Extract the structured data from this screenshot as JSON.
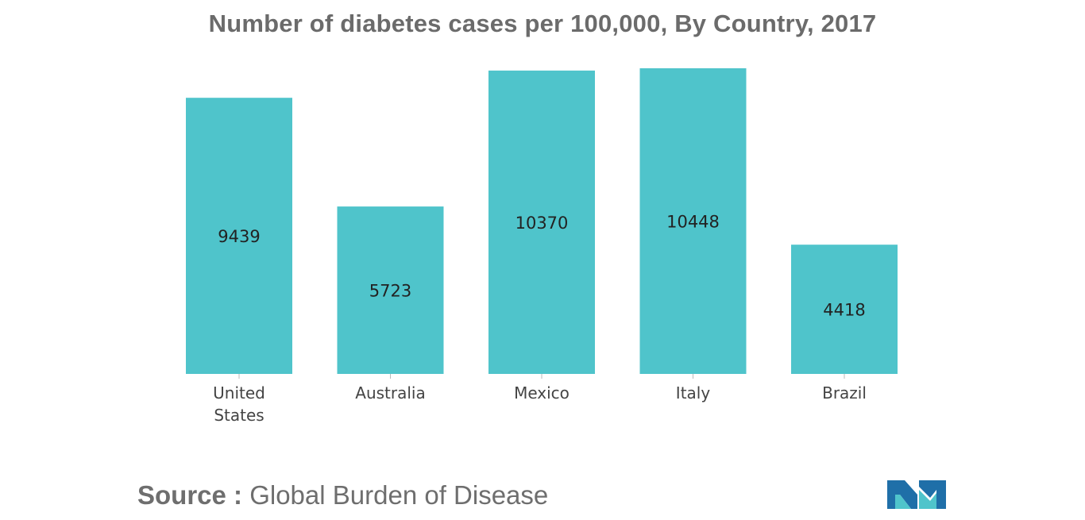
{
  "chart_data": {
    "type": "bar",
    "title": "Number of diabetes cases per 100,000, By Country, 2017",
    "categories": [
      "United States",
      "Australia",
      "Mexico",
      "Italy",
      "Brazil"
    ],
    "category_lines": [
      [
        "United",
        "States"
      ],
      [
        "Australia"
      ],
      [
        "Mexico"
      ],
      [
        "Italy"
      ],
      [
        "Brazil"
      ]
    ],
    "values": [
      9439,
      5723,
      10370,
      10448,
      4418
    ],
    "data_labels": [
      "9439",
      "5723",
      "10370",
      "10448",
      "4418"
    ],
    "xlabel": "",
    "ylabel": "",
    "ylim": [
      0,
      10448
    ],
    "grid": false,
    "legend": "none",
    "bar_color": "#4fc4cb"
  },
  "source": {
    "prefix": "Source : ",
    "text": "Global Burden of Disease"
  },
  "logo": {
    "icon": "mordor-intelligence-logo-icon",
    "colors": [
      "#1f6fa8",
      "#4fc4cb"
    ]
  }
}
